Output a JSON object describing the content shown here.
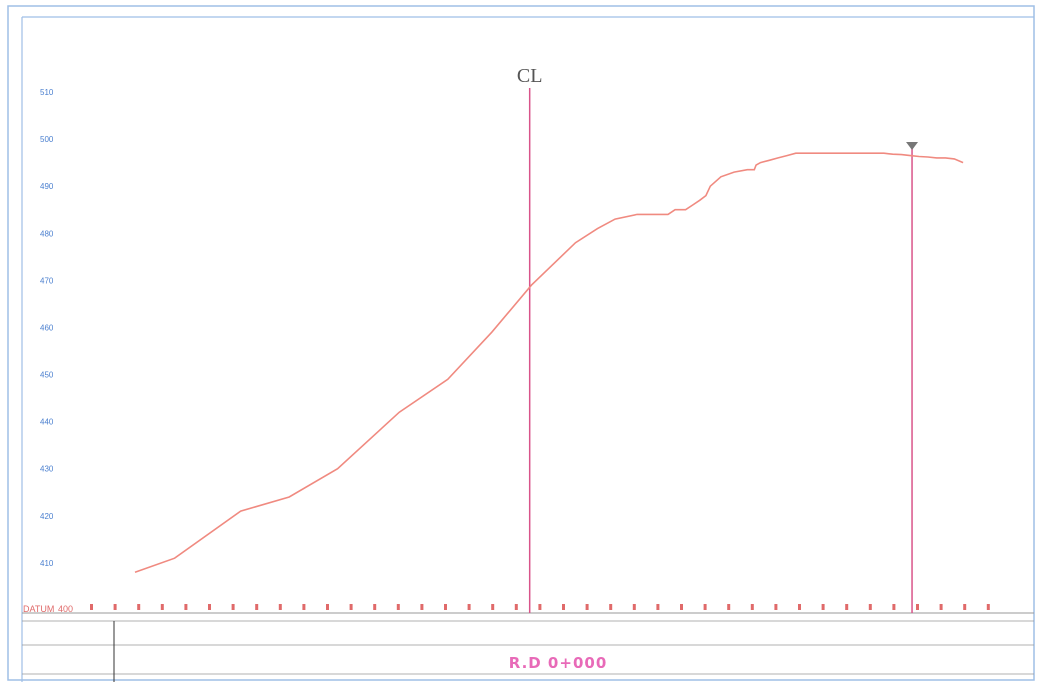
{
  "colors": {
    "profile_line": "#f08a80",
    "marker_line": "#d9548a",
    "tick_label": "#4a7fcf",
    "datum_text": "#e06a6a",
    "band_label": "#e86ab8",
    "frame": "#9fbfe6",
    "grid": "#999999"
  },
  "chart_data": {
    "type": "line",
    "title": "",
    "xlabel": "",
    "ylabel": "",
    "xlim": [
      0,
      100
    ],
    "ylim": [
      400,
      510
    ],
    "yticks": [
      410,
      420,
      430,
      440,
      450,
      460,
      470,
      480,
      490,
      500,
      510
    ],
    "ytick_labels": [
      "410",
      "420",
      "430",
      "440",
      "450",
      "460",
      "470",
      "480",
      "490",
      "500",
      "510"
    ],
    "series": [
      {
        "x": [
          0,
          4.5,
          12,
          17.5,
          23,
          30,
          35.5,
          40.5,
          45,
          50,
          52.5,
          54.5,
          57,
          59,
          60.5,
          61.3,
          62.5,
          63.3,
          64.1,
          64.8,
          65.3,
          66.5,
          68,
          69.5,
          70.3,
          70.5,
          71,
          72,
          73,
          74,
          75,
          76,
          77,
          78,
          79,
          80,
          81,
          81.1,
          82,
          83,
          84,
          85,
          86,
          87,
          88,
          89,
          90,
          91,
          92,
          93,
          94
        ],
        "y": [
          408,
          411,
          421,
          424,
          430,
          442,
          449,
          459,
          469,
          478,
          481,
          483,
          484,
          484,
          484,
          485,
          485,
          486,
          487,
          488,
          490,
          492,
          493,
          493.5,
          493.5,
          494.5,
          495,
          495.5,
          496,
          496.5,
          497,
          497,
          497,
          497,
          497,
          497,
          497,
          497,
          497,
          497,
          497,
          497,
          496.8,
          496.7,
          496.5,
          496.3,
          496.2,
          496,
          496,
          495.8,
          495
        ]
      }
    ],
    "annotations": {
      "cl_label": "CL",
      "datum_label": "DATUM",
      "datum_value": "400",
      "band_label": "R.D 0+000"
    },
    "cl_x": 44.8,
    "marker_x": 88.2,
    "grid": false,
    "legend": "none"
  }
}
